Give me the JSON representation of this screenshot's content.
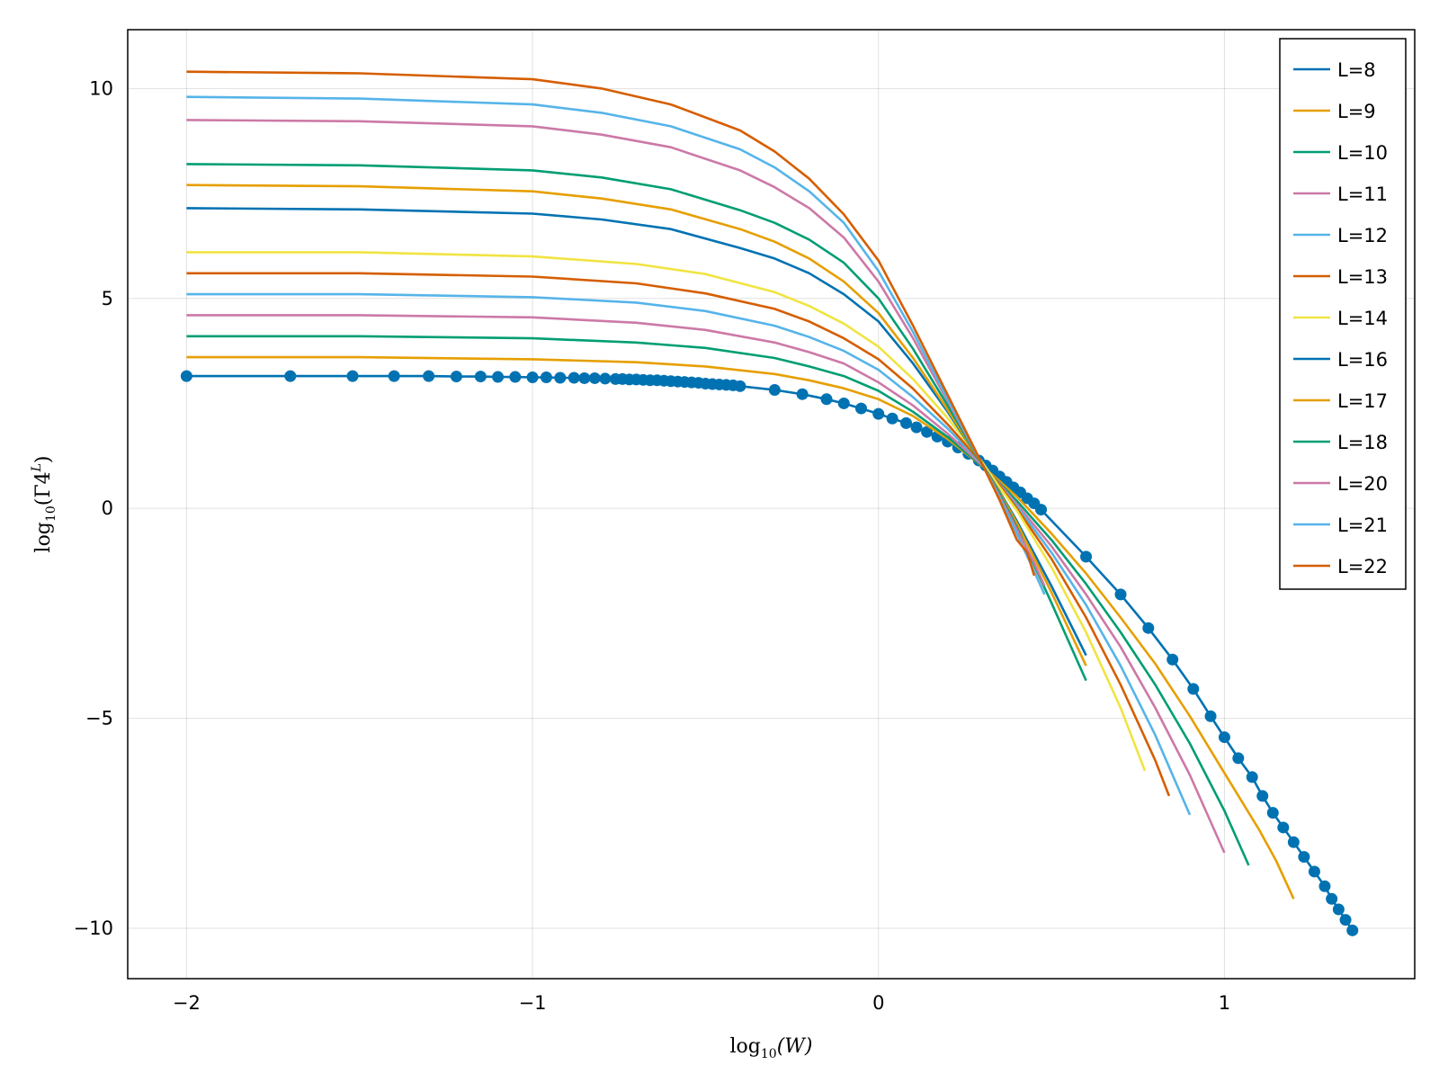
{
  "chart_data": {
    "type": "line",
    "title": "",
    "xlabel": "log10(W)",
    "ylabel": "log10(Γ4^L)",
    "xlabel_parts": {
      "fn": "log",
      "sub": "10",
      "arg": "(W)"
    },
    "ylabel_parts": {
      "fn": "log",
      "sub": "10",
      "arg": "(Γ4",
      "sup": "L",
      "close": ")"
    },
    "xlim": [
      -2.17,
      1.55
    ],
    "ylim": [
      -11.2,
      11.4
    ],
    "x_ticks": [
      -2,
      -1,
      0,
      1
    ],
    "x_tick_labels": [
      "−2",
      "−1",
      "0",
      "1"
    ],
    "y_ticks": [
      -10,
      -5,
      0,
      5,
      10
    ],
    "y_tick_labels": [
      "−10",
      "−5",
      "0",
      "5",
      "10"
    ],
    "grid": true,
    "legend_position": "top-right",
    "series": [
      {
        "name": "L=8",
        "color": "#0072B2",
        "markers": true,
        "x": [
          -2.0,
          -1.7,
          -1.52,
          -1.4,
          -1.3,
          -1.22,
          -1.15,
          -1.1,
          -1.05,
          -1.0,
          -0.96,
          -0.92,
          -0.88,
          -0.85,
          -0.82,
          -0.79,
          -0.76,
          -0.74,
          -0.72,
          -0.7,
          -0.68,
          -0.66,
          -0.64,
          -0.62,
          -0.6,
          -0.58,
          -0.56,
          -0.54,
          -0.52,
          -0.5,
          -0.48,
          -0.46,
          -0.44,
          -0.42,
          -0.4,
          -0.3,
          -0.22,
          -0.15,
          -0.1,
          -0.05,
          0.0,
          0.04,
          0.08,
          0.11,
          0.14,
          0.17,
          0.2,
          0.23,
          0.26,
          0.29,
          0.31,
          0.33,
          0.35,
          0.37,
          0.39,
          0.41,
          0.43,
          0.45,
          0.47,
          0.6,
          0.7,
          0.78,
          0.85,
          0.91,
          0.96,
          1.0,
          1.04,
          1.08,
          1.11,
          1.14,
          1.17,
          1.2,
          1.23,
          1.26,
          1.29,
          1.31,
          1.33,
          1.35,
          1.37
        ],
        "y": [
          3.15,
          3.15,
          3.15,
          3.15,
          3.15,
          3.14,
          3.14,
          3.13,
          3.13,
          3.12,
          3.12,
          3.11,
          3.11,
          3.1,
          3.1,
          3.09,
          3.08,
          3.08,
          3.07,
          3.07,
          3.06,
          3.05,
          3.05,
          3.04,
          3.03,
          3.02,
          3.01,
          3.0,
          2.99,
          2.97,
          2.96,
          2.95,
          2.94,
          2.93,
          2.91,
          2.82,
          2.72,
          2.6,
          2.5,
          2.38,
          2.25,
          2.14,
          2.03,
          1.93,
          1.82,
          1.71,
          1.59,
          1.45,
          1.3,
          1.14,
          1.02,
          0.9,
          0.76,
          0.63,
          0.5,
          0.38,
          0.24,
          0.12,
          -0.03,
          -1.15,
          -2.05,
          -2.85,
          -3.6,
          -4.3,
          -4.95,
          -5.45,
          -5.95,
          -6.4,
          -6.85,
          -7.25,
          -7.6,
          -7.95,
          -8.3,
          -8.65,
          -9.0,
          -9.3,
          -9.55,
          -9.8,
          -10.05
        ]
      },
      {
        "name": "L=9",
        "color": "#E69F00",
        "markers": false,
        "x": [
          -2.0,
          -1.5,
          -1.0,
          -0.7,
          -0.5,
          -0.3,
          -0.2,
          -0.1,
          0.0,
          0.1,
          0.2,
          0.3,
          0.35,
          0.4,
          0.5,
          0.6,
          0.7,
          0.8,
          0.9,
          1.0,
          1.1,
          1.15,
          1.2
        ],
        "y": [
          3.6,
          3.6,
          3.55,
          3.48,
          3.38,
          3.2,
          3.05,
          2.86,
          2.6,
          2.2,
          1.65,
          1.0,
          0.65,
          0.28,
          -0.6,
          -1.55,
          -2.6,
          -3.7,
          -4.95,
          -6.3,
          -7.65,
          -8.4,
          -9.3
        ]
      },
      {
        "name": "L=10",
        "color": "#009E73",
        "markers": false,
        "x": [
          -2.0,
          -1.5,
          -1.0,
          -0.7,
          -0.5,
          -0.3,
          -0.2,
          -0.1,
          0.0,
          0.1,
          0.2,
          0.3,
          0.35,
          0.4,
          0.5,
          0.6,
          0.7,
          0.8,
          0.9,
          1.0,
          1.07
        ],
        "y": [
          4.1,
          4.1,
          4.05,
          3.95,
          3.82,
          3.58,
          3.38,
          3.15,
          2.8,
          2.3,
          1.7,
          1.0,
          0.6,
          0.18,
          -0.75,
          -1.8,
          -2.95,
          -4.2,
          -5.6,
          -7.2,
          -8.5
        ]
      },
      {
        "name": "L=11",
        "color": "#CC79A7",
        "markers": false,
        "x": [
          -2.0,
          -1.5,
          -1.0,
          -0.7,
          -0.5,
          -0.3,
          -0.2,
          -0.1,
          0.0,
          0.1,
          0.2,
          0.3,
          0.35,
          0.4,
          0.5,
          0.6,
          0.7,
          0.8,
          0.9,
          1.0
        ],
        "y": [
          4.6,
          4.6,
          4.55,
          4.42,
          4.25,
          3.95,
          3.72,
          3.45,
          3.0,
          2.45,
          1.78,
          1.02,
          0.58,
          0.1,
          -0.9,
          -2.05,
          -3.3,
          -4.75,
          -6.35,
          -8.2
        ]
      },
      {
        "name": "L=12",
        "color": "#56B4E9",
        "markers": false,
        "x": [
          -2.0,
          -1.5,
          -1.0,
          -0.7,
          -0.5,
          -0.3,
          -0.2,
          -0.1,
          0.0,
          0.1,
          0.2,
          0.3,
          0.35,
          0.4,
          0.5,
          0.6,
          0.7,
          0.8,
          0.9
        ],
        "y": [
          5.1,
          5.1,
          5.03,
          4.9,
          4.7,
          4.35,
          4.08,
          3.75,
          3.3,
          2.65,
          1.9,
          1.05,
          0.55,
          0.05,
          -1.05,
          -2.3,
          -3.75,
          -5.4,
          -7.3
        ]
      },
      {
        "name": "L=13",
        "color": "#D55E00",
        "markers": false,
        "x": [
          -2.0,
          -1.5,
          -1.0,
          -0.7,
          -0.5,
          -0.3,
          -0.2,
          -0.1,
          0.0,
          0.1,
          0.2,
          0.3,
          0.35,
          0.4,
          0.5,
          0.6,
          0.7,
          0.8,
          0.84
        ],
        "y": [
          5.6,
          5.6,
          5.52,
          5.36,
          5.12,
          4.75,
          4.45,
          4.05,
          3.55,
          2.85,
          2.0,
          1.07,
          0.55,
          0.0,
          -1.2,
          -2.6,
          -4.2,
          -6.0,
          -6.85
        ]
      },
      {
        "name": "L=14",
        "color": "#F0E442",
        "markers": false,
        "x": [
          -2.0,
          -1.5,
          -1.0,
          -0.7,
          -0.5,
          -0.3,
          -0.2,
          -0.1,
          0.0,
          0.1,
          0.2,
          0.3,
          0.35,
          0.4,
          0.5,
          0.6,
          0.7,
          0.77
        ],
        "y": [
          6.1,
          6.1,
          6.0,
          5.82,
          5.58,
          5.15,
          4.82,
          4.4,
          3.85,
          3.08,
          2.15,
          1.1,
          0.5,
          -0.05,
          -1.4,
          -2.95,
          -4.75,
          -6.25
        ]
      },
      {
        "name": "L=16",
        "color": "#0072B2",
        "markers": false,
        "x": [
          -2.0,
          -1.5,
          -1.0,
          -0.8,
          -0.6,
          -0.4,
          -0.3,
          -0.2,
          -0.1,
          0.0,
          0.1,
          0.2,
          0.3,
          0.35,
          0.4,
          0.5,
          0.6
        ],
        "y": [
          7.15,
          7.12,
          7.02,
          6.88,
          6.65,
          6.2,
          5.95,
          5.6,
          5.1,
          4.45,
          3.45,
          2.3,
          1.05,
          0.4,
          -0.3,
          -1.85,
          -3.5
        ]
      },
      {
        "name": "L=17",
        "color": "#E69F00",
        "markers": false,
        "x": [
          -2.0,
          -1.5,
          -1.0,
          -0.8,
          -0.6,
          -0.4,
          -0.3,
          -0.2,
          -0.1,
          0.0,
          0.1,
          0.2,
          0.3,
          0.35,
          0.4,
          0.5,
          0.6
        ],
        "y": [
          7.7,
          7.67,
          7.55,
          7.38,
          7.12,
          6.65,
          6.35,
          5.95,
          5.4,
          4.65,
          3.58,
          2.35,
          1.05,
          0.38,
          -0.35,
          -2.0,
          -3.75
        ]
      },
      {
        "name": "L=18",
        "color": "#009E73",
        "markers": false,
        "x": [
          -2.0,
          -1.5,
          -1.0,
          -0.8,
          -0.6,
          -0.4,
          -0.3,
          -0.2,
          -0.1,
          0.0,
          0.1,
          0.2,
          0.3,
          0.35,
          0.4,
          0.5,
          0.6
        ],
        "y": [
          8.2,
          8.17,
          8.05,
          7.88,
          7.6,
          7.1,
          6.8,
          6.4,
          5.85,
          5.0,
          3.8,
          2.45,
          1.05,
          0.35,
          -0.45,
          -2.25,
          -4.1
        ]
      },
      {
        "name": "L=20",
        "color": "#CC79A7",
        "markers": false,
        "x": [
          -2.0,
          -1.5,
          -1.0,
          -0.8,
          -0.6,
          -0.4,
          -0.3,
          -0.2,
          -0.1,
          0.0,
          0.1,
          0.2,
          0.3,
          0.35,
          0.4,
          0.45,
          0.48
        ],
        "y": [
          9.25,
          9.22,
          9.1,
          8.9,
          8.6,
          8.05,
          7.65,
          7.15,
          6.45,
          5.4,
          4.05,
          2.55,
          1.05,
          0.3,
          -0.5,
          -1.3,
          -1.85
        ]
      },
      {
        "name": "L=21",
        "color": "#56B4E9",
        "markers": false,
        "x": [
          -2.0,
          -1.5,
          -1.0,
          -0.8,
          -0.6,
          -0.4,
          -0.3,
          -0.2,
          -0.1,
          0.0,
          0.1,
          0.2,
          0.3,
          0.35,
          0.4,
          0.45,
          0.48
        ],
        "y": [
          9.8,
          9.76,
          9.62,
          9.42,
          9.1,
          8.55,
          8.12,
          7.55,
          6.8,
          5.65,
          4.2,
          2.6,
          1.05,
          0.25,
          -0.6,
          -1.5,
          -2.05
        ]
      },
      {
        "name": "L=22",
        "color": "#D55E00",
        "markers": false,
        "x": [
          -2.0,
          -1.5,
          -1.0,
          -0.8,
          -0.6,
          -0.4,
          -0.3,
          -0.2,
          -0.1,
          0.0,
          0.1,
          0.2,
          0.3,
          0.35,
          0.4,
          0.43,
          0.45
        ],
        "y": [
          10.4,
          10.36,
          10.22,
          10.0,
          9.62,
          9.0,
          8.5,
          7.85,
          7.0,
          5.9,
          4.35,
          2.7,
          1.05,
          0.2,
          -0.75,
          -1.05,
          -1.6
        ]
      }
    ]
  }
}
